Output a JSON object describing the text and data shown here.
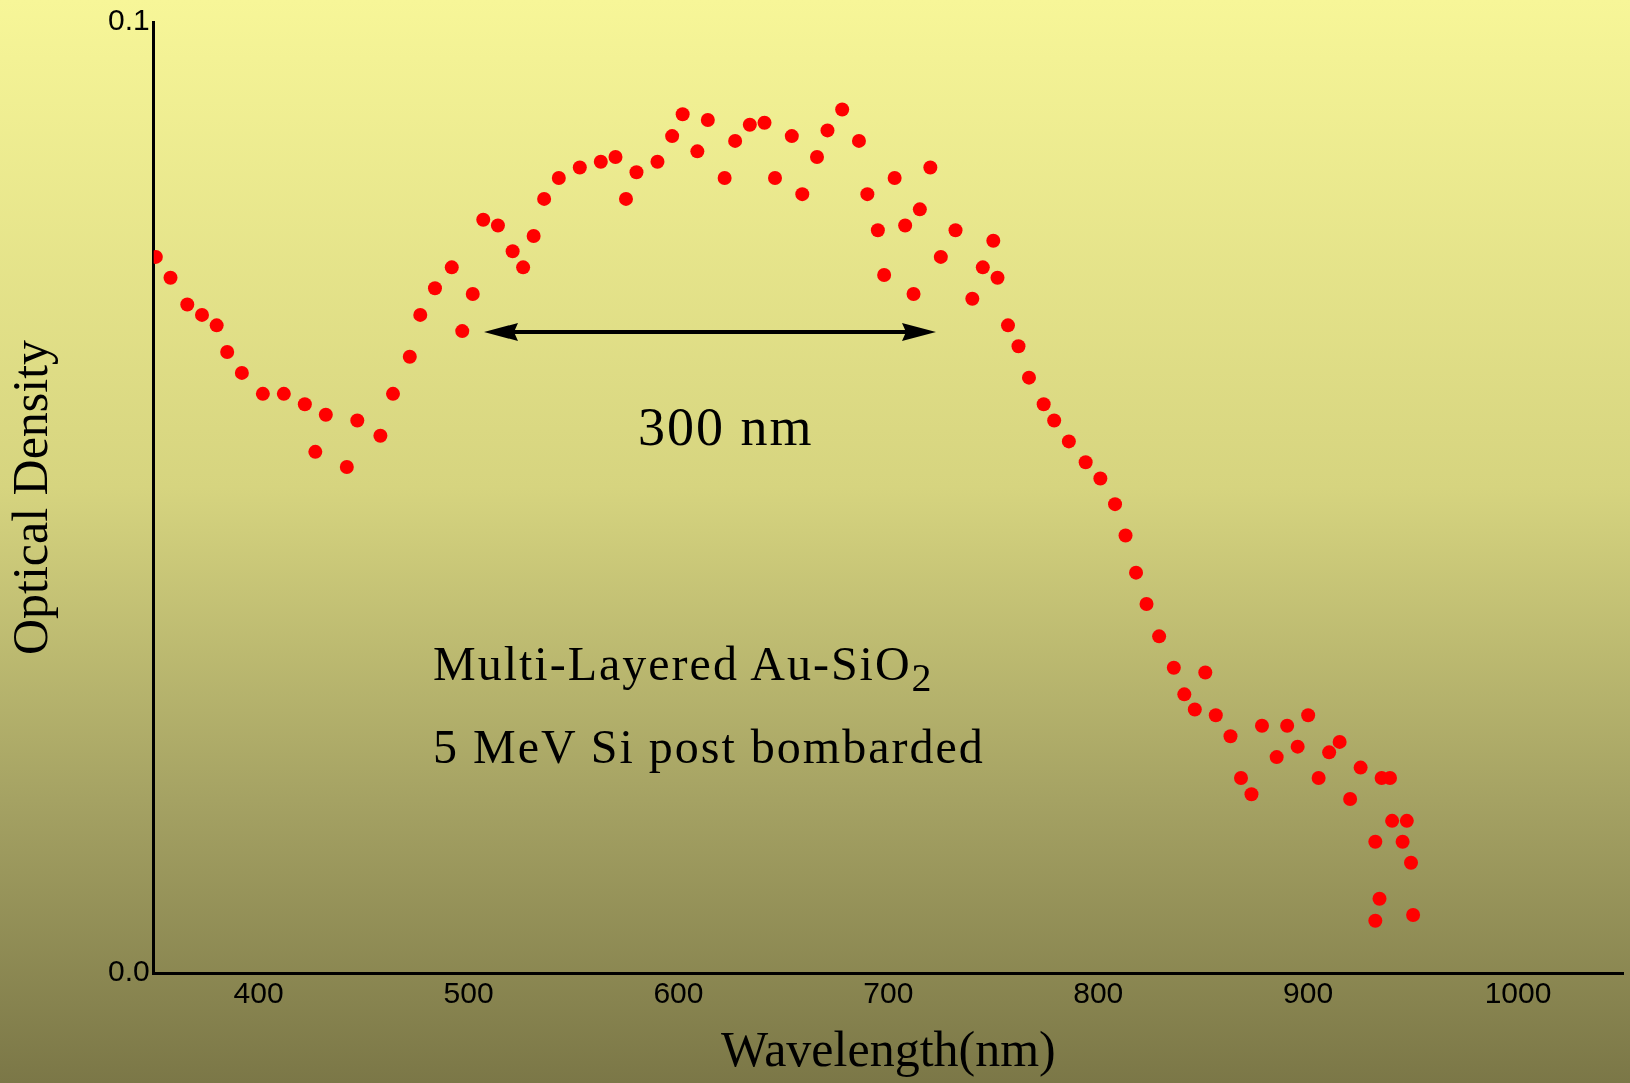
{
  "chart_data": {
    "type": "scatter",
    "xlabel": "Wavelength(nm)",
    "ylabel": "Optical Density",
    "xlim": [
      350,
      1050
    ],
    "xticks": [
      400,
      500,
      600,
      700,
      800,
      900,
      1000
    ],
    "ylim": [
      0,
      0.1
    ],
    "yticks": [
      {
        "value": 0,
        "label": "0.0"
      },
      {
        "value": 0.1,
        "label": "0.1"
      }
    ],
    "grid": false,
    "legend": false,
    "marker": "circle",
    "annotations": [
      "300 nm",
      "Multi-Layered Au-SiO$_{2}$",
      "5 MeV Si post bombarded"
    ],
    "series": [
      {
        "color": "#ff0000",
        "x": [
          351,
          358,
          366,
          373,
          380,
          385,
          392,
          402,
          412,
          422,
          427,
          432,
          442,
          447,
          458,
          464,
          472,
          477,
          484,
          492,
          497,
          502,
          507,
          514,
          521,
          526,
          531,
          536,
          543,
          553,
          563,
          570,
          575,
          580,
          590,
          597,
          602,
          609,
          614,
          622,
          627,
          634,
          641,
          646,
          654,
          659,
          666,
          671,
          678,
          686,
          690,
          695,
          698,
          703,
          708,
          712,
          715,
          720,
          725,
          732,
          740,
          745,
          750,
          752,
          757,
          762,
          767,
          774,
          779,
          786,
          794,
          801,
          808,
          813,
          818,
          823,
          829,
          836,
          841,
          846,
          851,
          856,
          863,
          868,
          873,
          878,
          885,
          890,
          895,
          900,
          905,
          910,
          915,
          920,
          925,
          932,
          934,
          935,
          939,
          940,
          945,
          947,
          949,
          950,
          932
        ],
        "values": [
          0.0753,
          0.0731,
          0.0703,
          0.0692,
          0.0681,
          0.0653,
          0.0631,
          0.0609,
          0.0609,
          0.0598,
          0.0548,
          0.0587,
          0.0532,
          0.0581,
          0.0565,
          0.0609,
          0.0648,
          0.0692,
          0.072,
          0.0742,
          0.0675,
          0.0714,
          0.0792,
          0.0786,
          0.0759,
          0.0742,
          0.0775,
          0.0814,
          0.0836,
          0.0847,
          0.0853,
          0.0858,
          0.0814,
          0.0842,
          0.0853,
          0.088,
          0.0903,
          0.0864,
          0.0897,
          0.0836,
          0.0875,
          0.0892,
          0.0894,
          0.0836,
          0.088,
          0.0819,
          0.0858,
          0.0886,
          0.0908,
          0.0875,
          0.0819,
          0.0781,
          0.0734,
          0.0836,
          0.0786,
          0.0714,
          0.0803,
          0.0847,
          0.0753,
          0.0781,
          0.0709,
          0.0742,
          0.077,
          0.0731,
          0.0681,
          0.0659,
          0.0626,
          0.0598,
          0.0581,
          0.0559,
          0.0537,
          0.052,
          0.0493,
          0.046,
          0.0421,
          0.0388,
          0.0354,
          0.0321,
          0.0293,
          0.0277,
          0.0316,
          0.0271,
          0.0249,
          0.0205,
          0.0188,
          0.026,
          0.0227,
          0.026,
          0.0238,
          0.0271,
          0.0205,
          0.0232,
          0.0243,
          0.0183,
          0.0216,
          0.0138,
          0.0078,
          0.0205,
          0.0205,
          0.016,
          0.0138,
          0.016,
          0.0116,
          0.0061,
          0.0055
        ]
      }
    ]
  }
}
